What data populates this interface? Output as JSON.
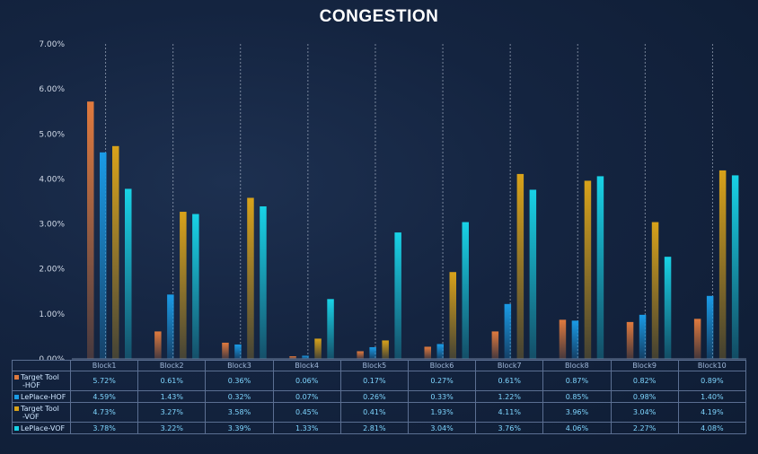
{
  "chart_data": {
    "type": "bar",
    "title": "CONGESTION",
    "categories": [
      "Block1",
      "Block2",
      "Block3",
      "Block4",
      "Block5",
      "Block6",
      "Block7",
      "Block8",
      "Block9",
      "Block10"
    ],
    "ylim": [
      0,
      7
    ],
    "yticks": [
      "0.00%",
      "1.00%",
      "2.00%",
      "3.00%",
      "4.00%",
      "5.00%",
      "6.00%",
      "7.00%"
    ],
    "grid": "vertical dashed separators",
    "legend": "data table below chart",
    "series": [
      {
        "name": "Target Tool -HOF",
        "label_lines": [
          "Target Tool",
          "-HOF"
        ],
        "color": "#e07a3e",
        "values": [
          5.72,
          0.61,
          0.36,
          0.06,
          0.17,
          0.27,
          0.61,
          0.87,
          0.82,
          0.89
        ],
        "labels": [
          "5.72%",
          "0.61%",
          "0.36%",
          "0.06%",
          "0.17%",
          "0.27%",
          "0.61%",
          "0.87%",
          "0.82%",
          "0.89%"
        ]
      },
      {
        "name": "LePlace-HOF",
        "label_lines": [
          "LePlace-HOF"
        ],
        "color": "#1a9be6",
        "values": [
          4.59,
          1.43,
          0.32,
          0.07,
          0.26,
          0.33,
          1.22,
          0.85,
          0.98,
          1.4
        ],
        "labels": [
          "4.59%",
          "1.43%",
          "0.32%",
          "0.07%",
          "0.26%",
          "0.33%",
          "1.22%",
          "0.85%",
          "0.98%",
          "1.40%"
        ]
      },
      {
        "name": "Target Tool -VOF",
        "label_lines": [
          "Target Tool",
          "-VOF"
        ],
        "color": "#d8a21a",
        "values": [
          4.73,
          3.27,
          3.58,
          0.45,
          0.41,
          1.93,
          4.11,
          3.96,
          3.04,
          4.19
        ],
        "labels": [
          "4.73%",
          "3.27%",
          "3.58%",
          "0.45%",
          "0.41%",
          "1.93%",
          "4.11%",
          "3.96%",
          "3.04%",
          "4.19%"
        ]
      },
      {
        "name": "LePlace-VOF",
        "label_lines": [
          "LePlace-VOF"
        ],
        "color": "#18d2e6",
        "values": [
          3.78,
          3.22,
          3.39,
          1.33,
          2.81,
          3.04,
          3.76,
          4.06,
          2.27,
          4.08
        ],
        "labels": [
          "3.78%",
          "3.22%",
          "3.39%",
          "1.33%",
          "2.81%",
          "3.04%",
          "3.76%",
          "4.06%",
          "2.27%",
          "4.08%"
        ]
      }
    ]
  }
}
